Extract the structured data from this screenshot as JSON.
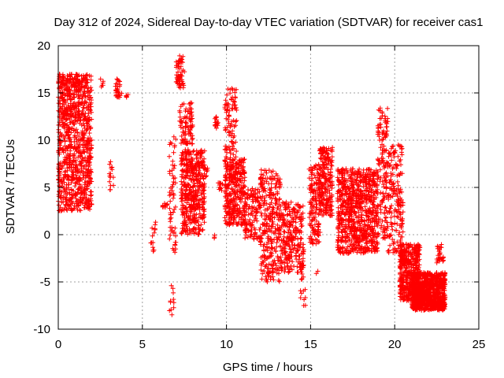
{
  "chart_data": {
    "type": "scatter",
    "title": "Day 312 of 2024, Sidereal Day-to-day VTEC variation (SDTVAR) for receiver cas1",
    "xlabel": "GPS time / hours",
    "ylabel": "SDTVAR / TECUs",
    "xlim": [
      0,
      25
    ],
    "ylim": [
      -10,
      20
    ],
    "xticks": [
      0,
      5,
      10,
      15,
      20,
      25
    ],
    "yticks": [
      -10,
      -5,
      0,
      5,
      10,
      15,
      20
    ],
    "grid": true,
    "marker": "+",
    "series_color": "#ff0000",
    "clusters": [
      {
        "x": [
          0.0,
          2.0
        ],
        "y": [
          2.5,
          17.0
        ],
        "count": 900
      },
      {
        "x": [
          0.35,
          1.6
        ],
        "y": [
          12.0,
          17.0
        ],
        "count": 60
      },
      {
        "x": [
          2.5,
          2.7
        ],
        "y": [
          15.5,
          16.5
        ],
        "count": 6
      },
      {
        "x": [
          3.0,
          3.3
        ],
        "y": [
          4.5,
          8.0
        ],
        "count": 15
      },
      {
        "x": [
          3.4,
          3.8
        ],
        "y": [
          14.5,
          16.5
        ],
        "count": 30
      },
      {
        "x": [
          4.0,
          4.2
        ],
        "y": [
          14.5,
          15.0
        ],
        "count": 5
      },
      {
        "x": [
          5.5,
          5.8
        ],
        "y": [
          -2.0,
          2.0
        ],
        "count": 14
      },
      {
        "x": [
          6.2,
          6.5
        ],
        "y": [
          2.8,
          3.4
        ],
        "count": 10
      },
      {
        "x": [
          6.6,
          6.9
        ],
        "y": [
          -8.5,
          -5.0
        ],
        "count": 12
      },
      {
        "x": [
          6.6,
          7.0
        ],
        "y": [
          -2.0,
          10.5
        ],
        "count": 60
      },
      {
        "x": [
          7.0,
          7.5
        ],
        "y": [
          15.5,
          19.0
        ],
        "count": 60
      },
      {
        "x": [
          7.2,
          8.0
        ],
        "y": [
          9.5,
          14.0
        ],
        "count": 90
      },
      {
        "x": [
          7.3,
          8.7
        ],
        "y": [
          0.0,
          9.0
        ],
        "count": 450
      },
      {
        "x": [
          8.7,
          8.9
        ],
        "y": [
          6.0,
          7.5
        ],
        "count": 8
      },
      {
        "x": [
          9.1,
          9.3
        ],
        "y": [
          -0.5,
          0.0
        ],
        "count": 3
      },
      {
        "x": [
          9.3,
          9.5
        ],
        "y": [
          11.0,
          12.5
        ],
        "count": 15
      },
      {
        "x": [
          9.5,
          9.8
        ],
        "y": [
          4.5,
          5.5
        ],
        "count": 12
      },
      {
        "x": [
          9.9,
          10.6
        ],
        "y": [
          8.0,
          15.5
        ],
        "count": 90
      },
      {
        "x": [
          9.9,
          11.1
        ],
        "y": [
          1.0,
          8.0
        ],
        "count": 350
      },
      {
        "x": [
          11.1,
          12.0
        ],
        "y": [
          -0.5,
          5.0
        ],
        "count": 120
      },
      {
        "x": [
          12.0,
          13.2
        ],
        "y": [
          -5.0,
          7.0
        ],
        "count": 300
      },
      {
        "x": [
          13.2,
          14.6
        ],
        "y": [
          -4.0,
          3.5
        ],
        "count": 260
      },
      {
        "x": [
          14.4,
          14.7
        ],
        "y": [
          -7.5,
          -3.0
        ],
        "count": 20
      },
      {
        "x": [
          14.9,
          15.6
        ],
        "y": [
          -1.0,
          7.5
        ],
        "count": 150
      },
      {
        "x": [
          15.3,
          15.5
        ],
        "y": [
          -4.2,
          -3.8
        ],
        "count": 2
      },
      {
        "x": [
          15.5,
          16.3
        ],
        "y": [
          2.0,
          9.3
        ],
        "count": 220
      },
      {
        "x": [
          16.6,
          19.0
        ],
        "y": [
          -2.0,
          7.0
        ],
        "count": 800
      },
      {
        "x": [
          19.0,
          19.6
        ],
        "y": [
          -0.5,
          13.5
        ],
        "count": 150
      },
      {
        "x": [
          19.6,
          20.5
        ],
        "y": [
          -2.0,
          9.5
        ],
        "count": 180
      },
      {
        "x": [
          20.3,
          21.5
        ],
        "y": [
          -7.0,
          -1.0
        ],
        "count": 450
      },
      {
        "x": [
          21.0,
          23.0
        ],
        "y": [
          -8.0,
          -4.0
        ],
        "count": 900
      },
      {
        "x": [
          22.5,
          22.9
        ],
        "y": [
          -3.0,
          -0.9
        ],
        "count": 30
      }
    ]
  }
}
